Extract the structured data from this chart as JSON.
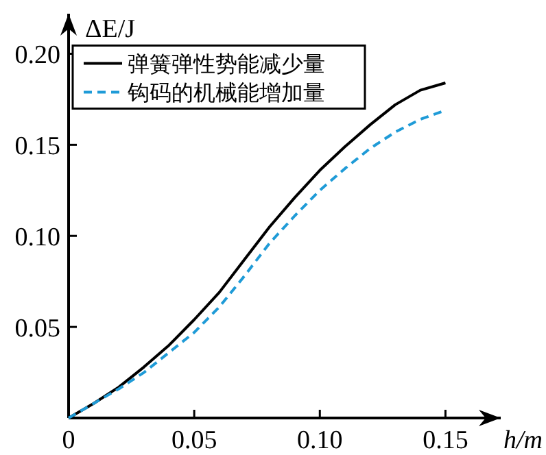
{
  "chart_data": {
    "type": "line",
    "xlabel": "h/m",
    "ylabel": "ΔE/J",
    "x": [
      0,
      0.01,
      0.02,
      0.03,
      0.04,
      0.05,
      0.06,
      0.07,
      0.08,
      0.09,
      0.1,
      0.11,
      0.12,
      0.13,
      0.14,
      0.15
    ],
    "series": [
      {
        "name": "弹簧弹性势能减少量",
        "color": "#000000",
        "line_style": "solid",
        "values": [
          0,
          0.008,
          0.017,
          0.028,
          0.04,
          0.054,
          0.069,
          0.087,
          0.105,
          0.121,
          0.136,
          0.149,
          0.161,
          0.172,
          0.18,
          0.184
        ]
      },
      {
        "name": "钩码的机械能增加量",
        "color": "#1f9bd7",
        "line_style": "dashed",
        "values": [
          0,
          0.008,
          0.016,
          0.025,
          0.036,
          0.047,
          0.061,
          0.078,
          0.096,
          0.111,
          0.125,
          0.137,
          0.148,
          0.157,
          0.164,
          0.169
        ]
      }
    ],
    "xlim": [
      0,
      0.172
    ],
    "ylim": [
      0,
      0.222
    ],
    "xticks": [
      0,
      0.05,
      {
        "value": 0.1,
        "label": "0.10"
      },
      0.15
    ],
    "yticks": [
      0.05,
      {
        "value": 0.1,
        "label": "0.10"
      },
      0.15,
      {
        "value": 0.2,
        "label": "0.20"
      }
    ],
    "grid": false,
    "legend": "top left",
    "marker": "none"
  }
}
